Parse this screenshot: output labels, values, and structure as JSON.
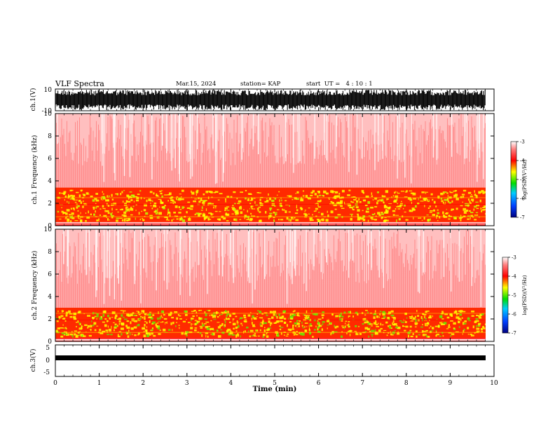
{
  "header": {
    "title": "VLF Spectra",
    "date": "Mar.15, 2024",
    "station": "station= KAP",
    "start": "start  UT =   4 : 10 : 1"
  },
  "chart_data": [
    {
      "type": "line",
      "panel": "ch1-waveform",
      "ylabel": "ch.1(V)",
      "yticks": [
        "10",
        "-10"
      ],
      "ylim": [
        -10,
        10
      ],
      "description_values": "dense broadband waveform saturating near ±10 V"
    },
    {
      "type": "heatmap",
      "panel": "ch1-spectrogram",
      "ylabel": "ch.1 Frequency  (kHz)",
      "yticks": [
        "0",
        "2",
        "4",
        "6",
        "8",
        "10"
      ],
      "ylim": [
        0,
        10
      ],
      "xlim": [
        0,
        10
      ],
      "colorbar": {
        "label": "log(PSD)(V²/Hz)",
        "ticks": [
          "-3",
          "-4",
          "-5",
          "-6",
          "-7"
        ],
        "range": [
          -7,
          -3
        ]
      },
      "bands": [
        {
          "from_khz": 0.3,
          "to_khz": 3.4,
          "level": -4.0
        },
        {
          "from_khz": 3.4,
          "to_khz": 10.0,
          "level": -3.2
        }
      ]
    },
    {
      "type": "heatmap",
      "panel": "ch2-spectrogram",
      "ylabel": "ch.2 Frequency  (kHz)",
      "yticks": [
        "0",
        "2",
        "4",
        "6",
        "8",
        "10"
      ],
      "ylim": [
        0,
        10
      ],
      "xlim": [
        0,
        10
      ],
      "colorbar": {
        "label": "log(PSD)(V²/Hz)",
        "ticks": [
          "-3",
          "-4",
          "-5",
          "-6",
          "-7"
        ],
        "range": [
          -7,
          -3
        ]
      },
      "bands": [
        {
          "from_khz": 0.3,
          "to_khz": 3.0,
          "level": -4.6
        },
        {
          "from_khz": 3.0,
          "to_khz": 10.0,
          "level": -3.2
        }
      ]
    },
    {
      "type": "line",
      "panel": "ch3-waveform",
      "ylabel": "ch.3(V)",
      "yticks": [
        "5",
        "0",
        "-5"
      ],
      "ylim": [
        -5,
        5
      ],
      "description_values": "narrow trace near -1.5 V"
    }
  ],
  "xaxis": {
    "label": "Time  (min)",
    "ticks": [
      "0",
      "1",
      "2",
      "3",
      "4",
      "5",
      "6",
      "7",
      "8",
      "9",
      "10"
    ],
    "xlim": [
      0,
      10
    ]
  },
  "colors": {
    "high": "#ff0000",
    "mid": "#ffff00",
    "low": "#00cc00",
    "lowest": "#0000aa"
  }
}
